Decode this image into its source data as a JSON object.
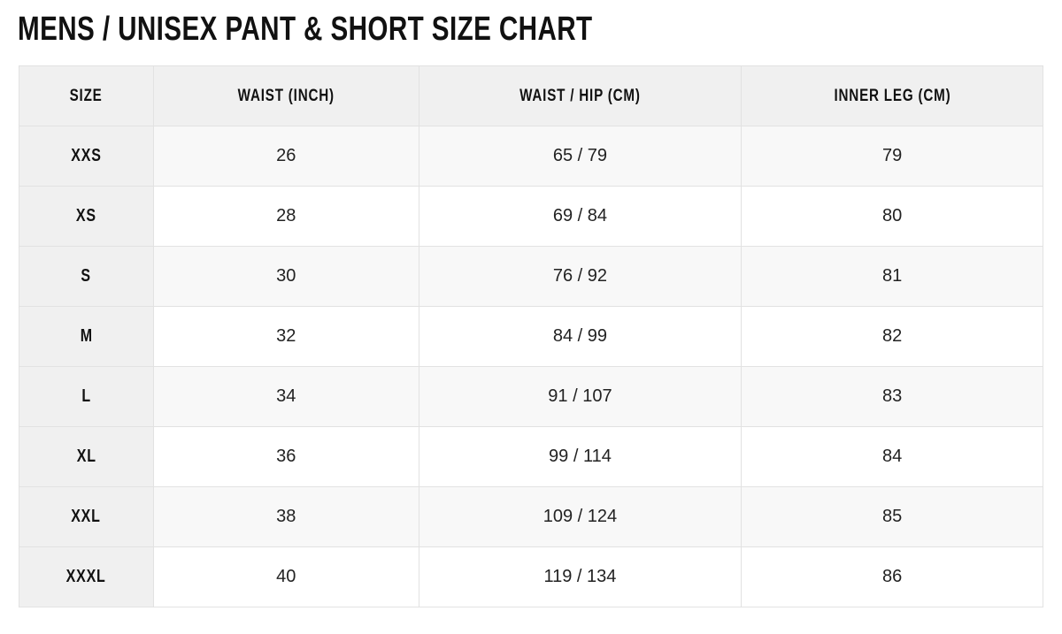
{
  "title": "MENS / UNISEX PANT & SHORT SIZE CHART",
  "headers": [
    "SIZE",
    "WAIST (INCH)",
    "WAIST / HIP (CM)",
    "INNER LEG (CM)"
  ],
  "rows": [
    [
      "XXS",
      "26",
      "65 / 79",
      "79"
    ],
    [
      "XS",
      "28",
      "69 / 84",
      "80"
    ],
    [
      "S",
      "30",
      "76 / 92",
      "81"
    ],
    [
      "M",
      "32",
      "84 / 99",
      "82"
    ],
    [
      "L",
      "34",
      "91 / 107",
      "83"
    ],
    [
      "XL",
      "36",
      "99 / 114",
      "84"
    ],
    [
      "XXL",
      "38",
      "109 / 124",
      "85"
    ],
    [
      "XXXL",
      "40",
      "119 / 134",
      "86"
    ]
  ]
}
